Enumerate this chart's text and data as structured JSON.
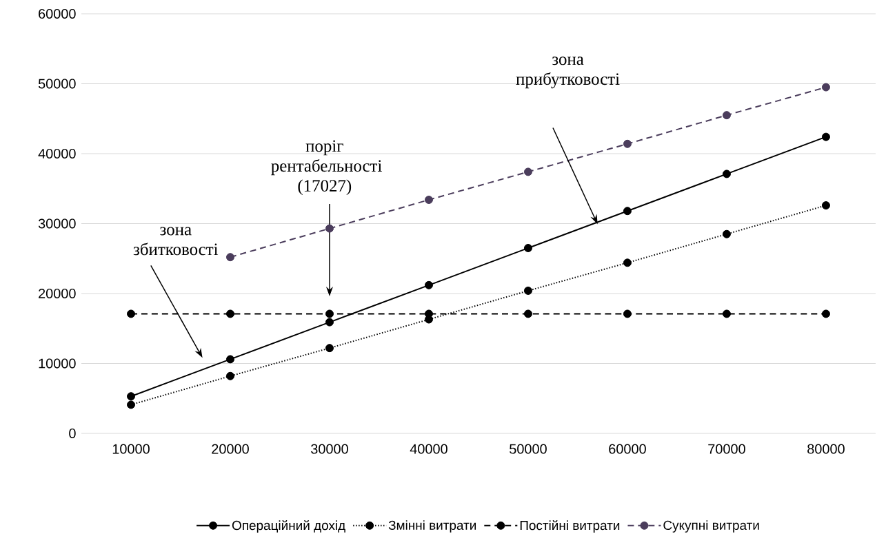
{
  "chart_data": {
    "type": "line",
    "categories": [
      "10000",
      "20000",
      "30000",
      "40000",
      "50000",
      "60000",
      "70000",
      "80000"
    ],
    "series": [
      {
        "name": "Операційний дохід",
        "color": "#000000",
        "line_style": "solid",
        "marker": "circle",
        "values": [
          5300,
          10600,
          15900,
          21200,
          26500,
          31800,
          37100,
          42400
        ]
      },
      {
        "name": "Змінні витрати",
        "color": "#000000",
        "line_style": "dotted",
        "marker": "circle",
        "values": [
          4100,
          8200,
          12200,
          16300,
          20400,
          24400,
          28500,
          32600
        ]
      },
      {
        "name": "Постійні витрати",
        "color": "#000000",
        "line_style": "dashed",
        "marker": "circle",
        "values": [
          17100,
          17100,
          17100,
          17100,
          17100,
          17100,
          17100,
          17100
        ]
      },
      {
        "name": "Сукупні витрати",
        "color": "#4b3d5c",
        "line_style": "dashed",
        "marker": "circle",
        "values": [
          null,
          25200,
          29300,
          33400,
          37400,
          41400,
          45500,
          49500
        ]
      }
    ],
    "ylim": [
      0,
      60000
    ],
    "yticks": [
      0,
      10000,
      20000,
      30000,
      40000,
      50000,
      60000
    ],
    "grid": "y",
    "legend": "bottom",
    "annotations": [
      "зона збитковості",
      "поріг рентабельності (17027)",
      "зона прибутковості"
    ]
  }
}
